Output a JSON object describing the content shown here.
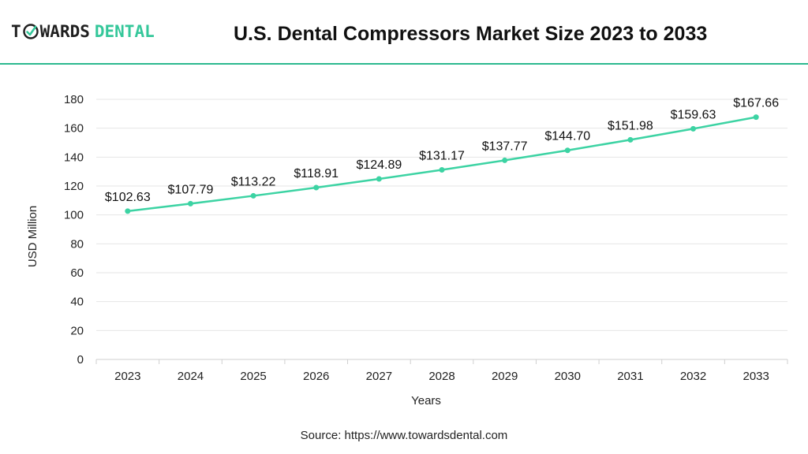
{
  "brand": {
    "name_part1": "T",
    "name_part1b": "WARDS",
    "name_part2": "DENTAL",
    "accent": "#34c79a"
  },
  "header": {
    "title": "U.S. Dental Compressors Market Size 2023 to 2033"
  },
  "source": {
    "label": "Source:",
    "url": "https://www.towardsdental.com"
  },
  "colors": {
    "line": "#3cd3a3",
    "divider": "#2bb98f",
    "grid": "#e6e6e6"
  },
  "chart_data": {
    "type": "line",
    "title": "U.S. Dental Compressors Market Size 2023 to 2033",
    "xlabel": "Years",
    "ylabel": "USD Million",
    "ylim": [
      0,
      180
    ],
    "yticks": [
      0,
      20,
      40,
      60,
      80,
      100,
      120,
      140,
      160,
      180
    ],
    "categories": [
      "2023",
      "2024",
      "2025",
      "2026",
      "2027",
      "2028",
      "2029",
      "2030",
      "2031",
      "2032",
      "2033"
    ],
    "series": [
      {
        "values": [
          102.63,
          107.79,
          113.22,
          118.91,
          124.89,
          131.17,
          137.77,
          144.7,
          151.98,
          159.63,
          167.66
        ],
        "labels": [
          "$102.63",
          "$107.79",
          "$113.22",
          "$118.91",
          "$124.89",
          "$131.17",
          "$137.77",
          "$144.70",
          "$151.98",
          "$159.63",
          "$167.66"
        ]
      }
    ],
    "grid": true,
    "legend": "none"
  }
}
